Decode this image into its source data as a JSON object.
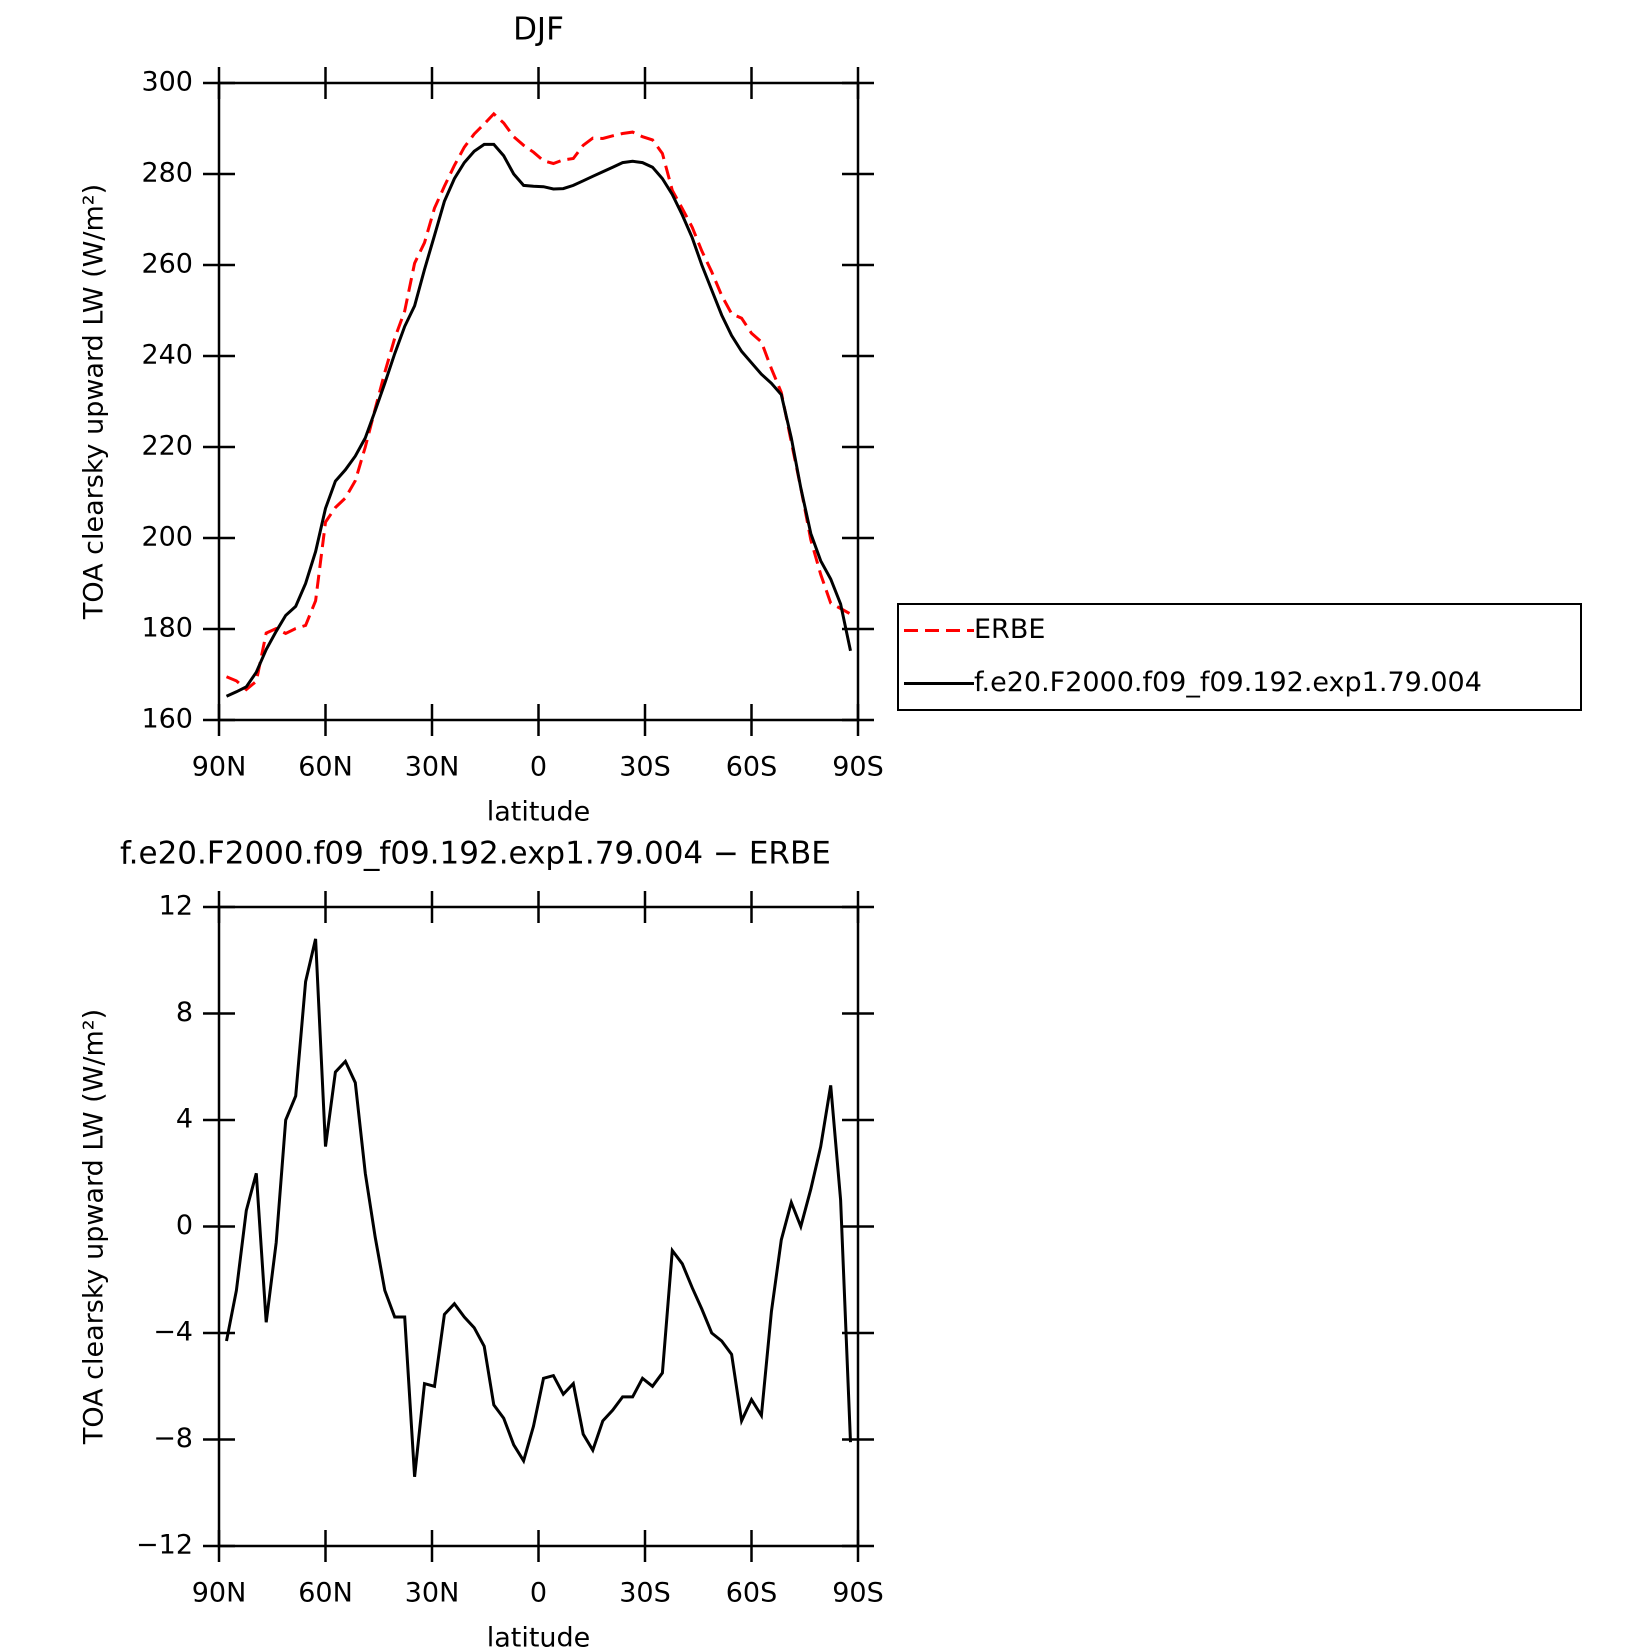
{
  "chart_data": [
    {
      "type": "line",
      "title": "DJF",
      "xlabel": "latitude",
      "ylabel": "TOA clearsky upward LW (W/m²)",
      "x": [
        87.9,
        85.1,
        82.3,
        79.5,
        76.7,
        73.9,
        71.2,
        68.4,
        65.6,
        62.8,
        60.0,
        57.2,
        54.4,
        51.6,
        48.8,
        46.0,
        43.3,
        40.5,
        37.7,
        34.9,
        32.1,
        29.3,
        26.5,
        23.7,
        20.9,
        18.1,
        15.3,
        12.6,
        9.8,
        7.0,
        4.2,
        1.4,
        -1.4,
        -4.2,
        -7.0,
        -9.8,
        -12.6,
        -15.3,
        -18.1,
        -20.9,
        -23.7,
        -26.5,
        -29.3,
        -32.1,
        -34.9,
        -37.7,
        -40.5,
        -43.3,
        -46.0,
        -48.8,
        -51.6,
        -54.4,
        -57.2,
        -60.0,
        -62.8,
        -65.6,
        -68.4,
        -71.2,
        -73.9,
        -76.7,
        -79.5,
        -82.3,
        -85.1,
        -87.9
      ],
      "series": [
        {
          "name": "ERBE",
          "color": "#ff0000",
          "line_style": "dashed",
          "values": [
            169.5,
            168.6,
            166.7,
            168.5,
            179.1,
            180.1,
            179,
            180.1,
            180.8,
            186.2,
            203.5,
            206.7,
            208.8,
            212.6,
            220,
            228.4,
            236.4,
            243.9,
            249.9,
            260.4,
            264.9,
            272.5,
            277.3,
            281.9,
            285.9,
            288.8,
            291,
            293.2,
            291.2,
            288.2,
            286.3,
            284.8,
            282.9,
            282.3,
            283.1,
            283.4,
            286.3,
            287.9,
            287.8,
            288.4,
            288.9,
            289.2,
            288.2,
            287.5,
            284.5,
            276.4,
            272.4,
            268.3,
            263.1,
            258.5,
            253.3,
            249.3,
            248.3,
            245,
            243.1,
            237.2,
            232,
            221.1,
            211,
            199.6,
            192,
            185.7,
            184.5,
            183.3
          ]
        },
        {
          "name": "f.e20.F2000.f09_f09.192.exp1.79.004",
          "color": "#000000",
          "line_style": "solid",
          "values": [
            165.2,
            166.2,
            167.3,
            170.5,
            175.5,
            179.5,
            183.0,
            185,
            190,
            197,
            206.5,
            212.5,
            215,
            218,
            222,
            228,
            234,
            240.5,
            246.5,
            251,
            259,
            266.5,
            274,
            279,
            282.5,
            285,
            286.5,
            286.5,
            284,
            280,
            277.5,
            277.3,
            277.2,
            276.7,
            276.8,
            277.5,
            278.5,
            279.5,
            280.5,
            281.5,
            282.5,
            282.8,
            282.5,
            281.5,
            279,
            275.5,
            271,
            266,
            260,
            254.5,
            249,
            244.5,
            241,
            238.5,
            236,
            234,
            231.5,
            222,
            211,
            201,
            195,
            191,
            185.5,
            175.2
          ]
        }
      ],
      "xlim": [
        90,
        -90
      ],
      "xticks": [
        {
          "value": 90,
          "label": "90N"
        },
        {
          "value": 60,
          "label": "60N"
        },
        {
          "value": 30,
          "label": "30N"
        },
        0,
        {
          "value": -30,
          "label": "30S"
        },
        {
          "value": -60,
          "label": "60S"
        },
        {
          "value": -90,
          "label": "90S"
        }
      ],
      "ylim": [
        160,
        300
      ],
      "yticks": [
        160,
        180,
        200,
        220,
        240,
        260,
        280,
        300
      ],
      "legend": "right"
    },
    {
      "type": "line",
      "title": "f.e20.F2000.f09_f09.192.exp1.79.004 − ERBE",
      "xlabel": "latitude",
      "ylabel": "TOA clearsky upward LW (W/m²)",
      "color": "#000000",
      "values": [
        -4.3,
        -2.4,
        0.6,
        2.0,
        -3.6,
        -0.6,
        4.0,
        4.9,
        9.2,
        10.8,
        3.0,
        5.8,
        6.2,
        5.4,
        2.0,
        -0.4,
        -2.4,
        -3.4,
        -3.4,
        -9.4,
        -5.9,
        -6.0,
        -3.3,
        -2.9,
        -3.4,
        -3.8,
        -4.5,
        -6.7,
        -7.2,
        -8.2,
        -8.8,
        -7.5,
        -5.7,
        -5.6,
        -6.3,
        -5.9,
        -7.8,
        -8.4,
        -7.3,
        -6.9,
        -6.4,
        -6.4,
        -5.7,
        -6.0,
        -5.5,
        -0.9,
        -1.4,
        -2.3,
        -3.1,
        -4.0,
        -4.3,
        -4.8,
        -7.3,
        -6.5,
        -7.1,
        -3.2,
        -0.5,
        0.9,
        0.0,
        1.4,
        3.0,
        5.3,
        1.0,
        -8.1
      ],
      "xlim": [
        90,
        -90
      ],
      "xticks": [
        {
          "value": 90,
          "label": "90N"
        },
        {
          "value": 60,
          "label": "60N"
        },
        {
          "value": 30,
          "label": "30N"
        },
        0,
        {
          "value": -30,
          "label": "30S"
        },
        {
          "value": -60,
          "label": "60S"
        },
        {
          "value": -90,
          "label": "90S"
        }
      ],
      "ylim": [
        -12,
        12
      ],
      "yticks": [
        {
          "value": -12,
          "label": "−12"
        },
        {
          "value": -8,
          "label": "−8"
        },
        {
          "value": -4,
          "label": "−4"
        },
        0,
        4,
        8,
        12
      ]
    }
  ]
}
